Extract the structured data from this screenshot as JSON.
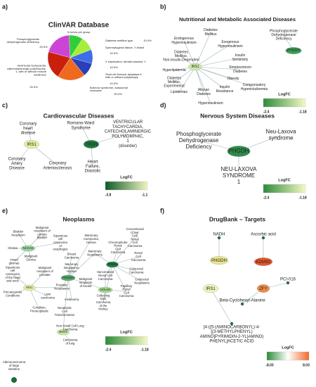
{
  "panels": [
    {
      "letter": "a)",
      "title": "ClinVAR Database",
      "subtitle": "% terms per group",
      "pie": {
        "labels": [
          [
            "Phosphoglycerate",
            "dehydrogenase deficiency"
          ],
          [
            "Diabetes mellitus type"
          ],
          [
            "Spermatogenic failure, Y-linked"
          ],
          [
            "X inactivation, familial skewed, 1"
          ],
          [
            "Short-rib thoracic dysplasia 6",
            "with or without polydactyly"
          ],
          [
            "Bobnow syndrome, autosomal",
            "recessive"
          ],
          [
            "Ventricular tachycardia,",
            "catecholaminergic polymorphic,",
            "1, with or without muscle",
            "weakness"
          ]
        ],
        "values": [
          20,
          10,
          10,
          10,
          10,
          20,
          20
        ],
        "value_labels": [
          "20.0%",
          "10.0%",
          "10.0%",
          "10.0%",
          "10.0%",
          "20.0%",
          "20.0%"
        ],
        "colors": [
          "#cc44d6",
          "#2fcf3a",
          "#a6ee3a",
          "#3d6ee6",
          "#2a3fb8",
          "#ef6a1e",
          "#c91f0c"
        ]
      }
    },
    {
      "letter": "b)",
      "title": "Nutritional and Metabolic Associated Diseases",
      "nodes": [
        {
          "label": [
            "IRS1"
          ],
          "shape": "ellipse",
          "color": "#cfe8a6"
        },
        {
          "label": [
            "PHGDH"
          ],
          "shape": "ellipse",
          "color": "#3f9e55"
        },
        {
          "label": [
            "Diabetes",
            "Mellitus"
          ]
        },
        {
          "label": [
            "Endogenous",
            "Hyperinsulinism"
          ]
        },
        {
          "label": [
            "Exogenous",
            "Hyperinsulinism"
          ]
        },
        {
          "label": [
            "Diabetes",
            "Mellitus,",
            "Non-Insulin-Dependent"
          ]
        },
        {
          "label": [
            "Insulin",
            "Sensitivity"
          ]
        },
        {
          "label": [
            "Hyperlipidemia"
          ]
        },
        {
          "label": [
            "Streptozotocin",
            "Diabetes"
          ]
        },
        {
          "label": [
            "Diabetes",
            "Mellitus,",
            "Experimental"
          ]
        },
        {
          "label": [
            "Obesity"
          ]
        },
        {
          "label": [
            "Lipidemias"
          ]
        },
        {
          "label": [
            "Alloxan",
            "Diabetes"
          ]
        },
        {
          "label": [
            "Insulin",
            "Resistance"
          ]
        },
        {
          "label": [
            "Compensatory",
            "Hyperinsulinemia"
          ]
        },
        {
          "label": [
            "Hyperinsulinism"
          ]
        },
        {
          "label": [
            "Phosphoglycerate",
            "Dehydrogenase",
            "Deficiency"
          ]
        }
      ],
      "legend": {
        "title": "LogFC",
        "min": -2.4,
        "max": -1.18
      }
    },
    {
      "letter": "c)",
      "title": "Cardiovascular Diseases",
      "nodes": [
        {
          "label": [
            "IRS1"
          ],
          "shape": "ellipse",
          "color": "#e6efa0"
        },
        {
          "label": [
            "TRDN"
          ],
          "shape": "ellipse",
          "color": "#1f7a3c"
        },
        {
          "label": [
            "Coronary",
            "heart",
            "disease"
          ]
        },
        {
          "label": [
            "Coronary",
            "Artery",
            "Disease"
          ]
        },
        {
          "label": [
            "Coronary",
            "Arteriosclerosis"
          ]
        },
        {
          "label": [
            "Romano-Ward",
            "Syndrome"
          ]
        },
        {
          "label": [
            "VENTRICULAR",
            "TACHYCARDIA,",
            "CATECHOLAMINERGIC",
            "POLYMORPHIC,",
            "1",
            "(disorder)"
          ]
        },
        {
          "label": [
            "Heart",
            "Failure,",
            "Diastolic"
          ]
        }
      ],
      "legend": {
        "title": "LogFC",
        "min": -3.8,
        "max": -1.1
      }
    },
    {
      "letter": "d)",
      "title": "Nervous System Diseases",
      "nodes": [
        {
          "label": [
            "PHGDH"
          ],
          "shape": "ellipse",
          "color": "#2e8b4a"
        },
        {
          "label": [
            "Phosphoglycerate",
            "Dehydrogenase",
            "Deficiency"
          ]
        },
        {
          "label": [
            "Neu-Laxova",
            "syndrome"
          ]
        },
        {
          "label": [
            "NEU-LAXOVA",
            "SYNDROME",
            "1"
          ]
        }
      ],
      "legend": {
        "title": "LogFC",
        "min": -2.4,
        "max": -1.18
      }
    },
    {
      "letter": "e)",
      "title": "Neoplasms",
      "nodes": [
        {
          "label": [
            "NCOA5"
          ],
          "shape": "ellipse",
          "color": "#9fd4a0"
        },
        {
          "label": [
            "IRS1"
          ],
          "shape": "ellipse",
          "color": "#e6efa0"
        },
        {
          "label": [
            "PHGDH"
          ],
          "shape": "ellipse",
          "color": "#5aa866"
        },
        {
          "label": [
            "TRDN"
          ],
          "shape": "ellipse",
          "color": "#1f7a3c"
        },
        {
          "label": [
            "GOLM4"
          ],
          "shape": "ellipse",
          "color": "#a8d88e"
        },
        {
          "label": [
            "MKKS"
          ],
          "shape": "ellipse",
          "color": "#cfe8a6"
        },
        {
          "label": [
            "Bladder",
            "Neoplasm"
          ]
        },
        {
          "label": [
            "Malignant",
            "neoplasm of",
            "urinary",
            "bladder"
          ]
        },
        {
          "label": [
            "Glioma"
          ]
        },
        {
          "label": [
            "Malignant",
            "Glioma"
          ]
        },
        {
          "label": [
            "mixed",
            "gliomas"
          ]
        },
        {
          "label": [
            "Squamous",
            "cell",
            "carcinoma",
            "of",
            "esophagus"
          ]
        },
        {
          "label": [
            "Breast",
            "Carcinoma"
          ]
        },
        {
          "label": [
            "Mammary",
            "Carcinoma,",
            "Human"
          ]
        },
        {
          "label": [
            "Mammary",
            "Neoplasms,",
            "Human"
          ]
        },
        {
          "label": [
            "Mammary",
            "Neoplasms"
          ]
        },
        {
          "label": [
            "Conventional",
            "(Clear",
            "Cell)",
            "Renal",
            "Cell",
            "Carcinoma"
          ]
        },
        {
          "label": [
            "Chromophobe",
            "Renal",
            "Cell",
            "Carcinoma"
          ]
        },
        {
          "label": [
            "Renal",
            "Cell",
            "Carcinoma"
          ]
        },
        {
          "label": [
            "Sarcomatoid",
            "Renal Cell",
            "Carcinoma"
          ]
        },
        {
          "label": [
            "Colorectal",
            "Carcinoma"
          ]
        },
        {
          "label": [
            "Colorectal",
            "Neoplasms"
          ]
        },
        {
          "label": [
            "Papillary",
            "Renal",
            "Cell",
            "Carcinoma"
          ]
        },
        {
          "label": [
            "Collecting",
            "Duct",
            "Carcinoma",
            "of the",
            "Kidney"
          ]
        },
        {
          "label": [
            "Malignant",
            "neoplasm",
            "of breast"
          ]
        },
        {
          "label": [
            "Malignant",
            "neoplasm of",
            "prostate"
          ]
        },
        {
          "label": [
            "Prostatic",
            "Neoplasms"
          ]
        },
        {
          "label": [
            "Squamous",
            "cell",
            "carcinoma",
            "of the head",
            "and neck"
          ]
        },
        {
          "label": [
            "Precancerous",
            "Conditions"
          ]
        },
        {
          "label": [
            "Liver",
            "carcinoma"
          ]
        },
        {
          "label": [
            "Condition,",
            "Preneoplastic"
          ]
        },
        {
          "label": [
            "melanoma"
          ]
        },
        {
          "label": [
            "Neoplastic",
            "Cell",
            "Transformation"
          ]
        },
        {
          "label": [
            "Non-Small Cell Lung",
            "Carcinoma"
          ]
        },
        {
          "label": [
            "Carcinoma",
            "of lung"
          ]
        },
        {
          "label": [
            "Adenocarcinoma",
            "of large",
            "intestine"
          ]
        }
      ],
      "legend": {
        "title": "LogFC",
        "min": -2.4,
        "max": -1.18
      }
    },
    {
      "letter": "f)",
      "title": "DrugBank – Targets",
      "nodes": [
        {
          "label": [
            "NADH"
          ],
          "shape": "dot",
          "color": "#2d6b3a"
        },
        {
          "label": [
            "Ascorbic acid"
          ],
          "shape": "dot",
          "color": "#2d6b3a"
        },
        {
          "label": [
            "PHGDH"
          ],
          "shape": "ellipse",
          "color": "#ece48c"
        },
        {
          "label": [
            "KDM5D"
          ],
          "shape": "ellipse",
          "color": "#e8552a"
        },
        {
          "label": [
            "IRS1"
          ],
          "shape": "ellipse",
          "color": "#eef4b8"
        },
        {
          "label": [
            "ZFY"
          ],
          "shape": "ellipse",
          "color": "#f08a4a"
        },
        {
          "label": [
            "PCI-016"
          ],
          "shape": "dot",
          "color": "#2d6b3a"
        },
        {
          "label": [
            "Beta-Cyclohexyl-Alanine"
          ],
          "shape": "dot",
          "color": "#2d6b3a"
        },
        {
          "label": [
            "[4-({5-(AMINOCARBONYL)-4-",
            "[(3-METHYLPHENYL)",
            "AMINO]PYRIMIDIN-2-YL}AMINO)",
            "PHENYL]ACETIC ACID"
          ],
          "shape": "dot",
          "color": "#2d6b3a"
        }
      ],
      "legend": {
        "title": "LogFC",
        "min": -8.03,
        "max": 8.03
      }
    }
  ]
}
